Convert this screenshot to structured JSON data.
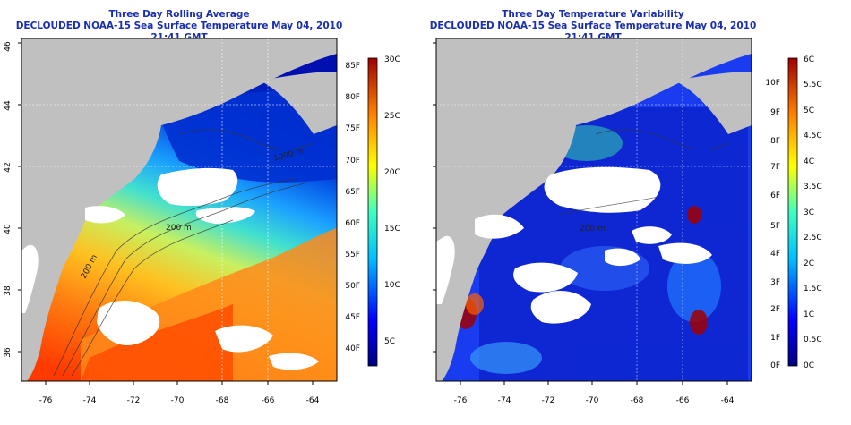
{
  "panels": [
    {
      "title": "Three Day Rolling Average",
      "subtitle": "DECLOUDED NOAA-15 Sea Surface Temperature May 04, 2010 21:41 GMT",
      "contour_labels": [
        "1000 m",
        "200 m",
        "200 m"
      ],
      "colorbar": {
        "left_labels": [
          "85F",
          "80F",
          "75F",
          "70F",
          "65F",
          "60F",
          "55F",
          "50F",
          "45F",
          "40F"
        ],
        "right_labels": [
          "30C",
          "25C",
          "20C",
          "15C",
          "10C",
          "5C"
        ]
      }
    },
    {
      "title": "Three Day Temperature Variability",
      "subtitle": "DECLOUDED NOAA-15 Sea Surface Temperature May 04, 2010 21:41 GMT",
      "contour_labels": [
        "200 m"
      ],
      "colorbar": {
        "left_labels": [
          "10F",
          "9F",
          "8F",
          "7F",
          "6F",
          "5F",
          "4F",
          "3F",
          "2F",
          "1F",
          "0F"
        ],
        "right_labels": [
          "6C",
          "5.5C",
          "5C",
          "4.5C",
          "4C",
          "3.5C",
          "3C",
          "2.5C",
          "2C",
          "1.5C",
          "1C",
          "0.5C",
          "0C"
        ]
      }
    }
  ],
  "axes": {
    "x_ticks": [
      "-76",
      "-74",
      "-72",
      "-70",
      "-68",
      "-66",
      "-64"
    ],
    "y_ticks": [
      "46",
      "44",
      "42",
      "40",
      "38",
      "36"
    ]
  },
  "colors": {
    "title": "#1a2fb0",
    "land": "#c0c0c0",
    "cloud_mask": "#ffffff"
  }
}
